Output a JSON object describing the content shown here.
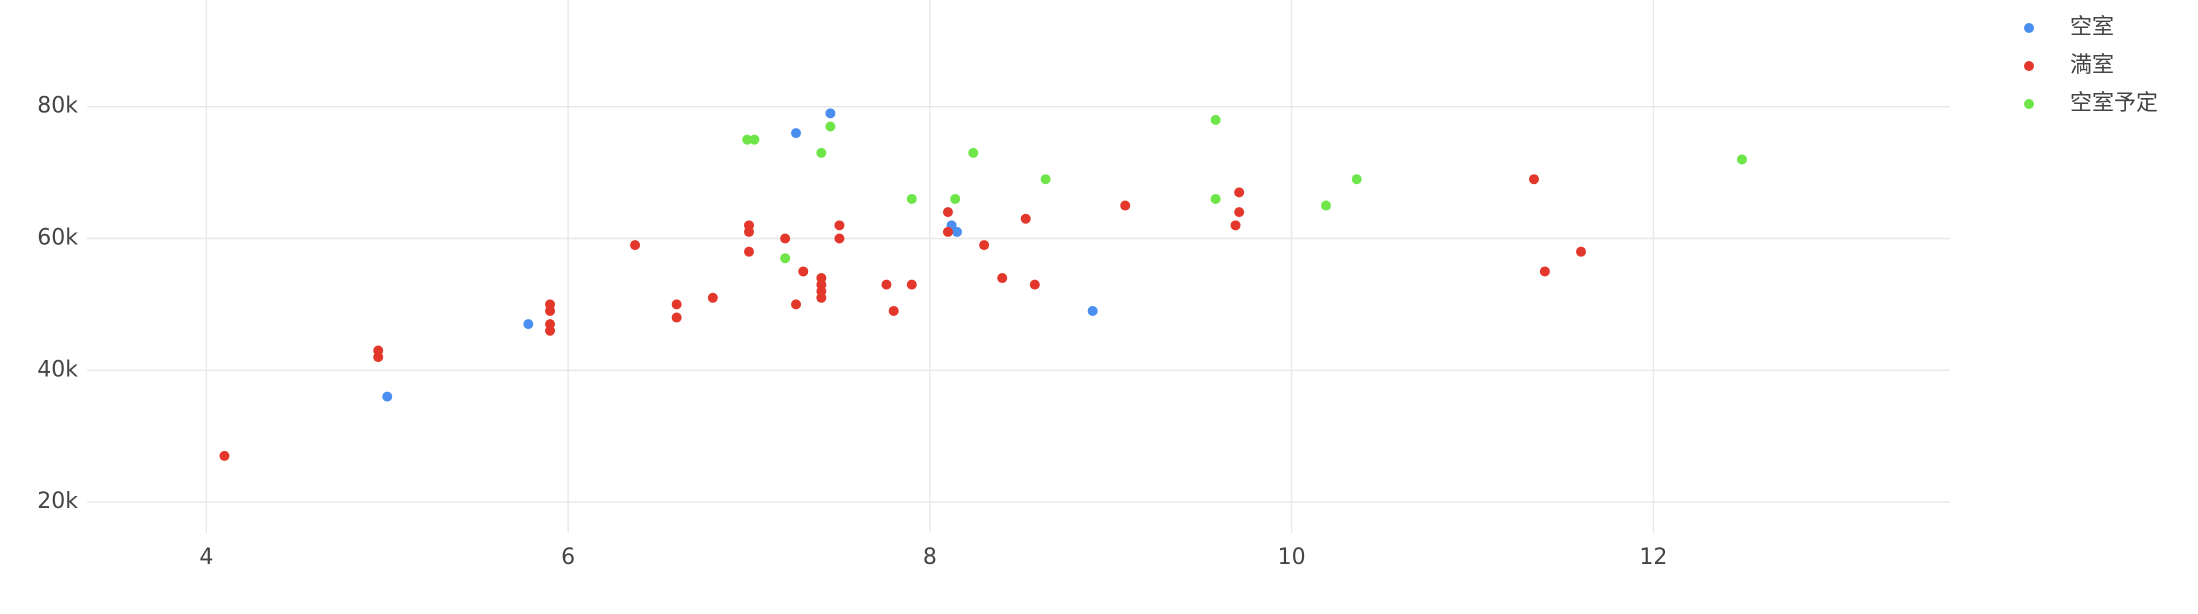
{
  "chart_data": {
    "type": "scatter",
    "xlim": [
      3.34,
      13.64
    ],
    "ylim": [
      15300,
      96200
    ],
    "xticks": [
      4,
      6,
      8,
      10,
      12
    ],
    "yticks": [
      {
        "value": 20000,
        "label": "20k"
      },
      {
        "value": 40000,
        "label": "40k"
      },
      {
        "value": 60000,
        "label": "60k"
      },
      {
        "value": 80000,
        "label": "80k"
      }
    ],
    "grid": true,
    "legend": "top-right",
    "series": [
      {
        "name": "空室",
        "color": "#4a8ef0",
        "x": [
          7.45,
          7.26,
          8.12,
          8.15,
          5.78,
          5.0,
          8.9
        ],
        "values": [
          79000,
          76000,
          62000,
          61000,
          47000,
          36000,
          49000
        ]
      },
      {
        "name": "満室",
        "color": "#e3372b",
        "x": [
          4.1,
          4.95,
          4.95,
          5.9,
          5.9,
          5.9,
          5.9,
          6.37,
          6.6,
          6.6,
          6.8,
          7.0,
          7.0,
          7.0,
          7.2,
          7.26,
          7.3,
          7.4,
          7.4,
          7.4,
          7.4,
          7.5,
          7.5,
          7.76,
          7.8,
          7.9,
          8.1,
          8.1,
          8.3,
          8.4,
          8.53,
          8.58,
          9.08,
          9.69,
          9.71,
          9.71,
          11.34,
          11.4,
          11.6
        ],
        "values": [
          27000,
          43000,
          42000,
          50000,
          49000,
          47000,
          46000,
          59000,
          50000,
          48000,
          51000,
          62000,
          61000,
          58000,
          60000,
          50000,
          55000,
          54000,
          53000,
          52000,
          51000,
          62000,
          60000,
          53000,
          49000,
          53000,
          64000,
          61000,
          59000,
          54000,
          63000,
          53000,
          65000,
          62000,
          64000,
          67000,
          69000,
          55000,
          58000
        ]
      },
      {
        "name": "空室予定",
        "color": "#6ee64a",
        "x": [
          6.99,
          7.03,
          7.45,
          7.4,
          7.2,
          7.9,
          8.14,
          8.24,
          8.64,
          9.58,
          9.58,
          10.19,
          10.36,
          12.49
        ],
        "values": [
          75000,
          75000,
          77000,
          73000,
          57000,
          66000,
          66000,
          73000,
          69000,
          78000,
          66000,
          65000,
          69000,
          72000
        ]
      }
    ]
  }
}
